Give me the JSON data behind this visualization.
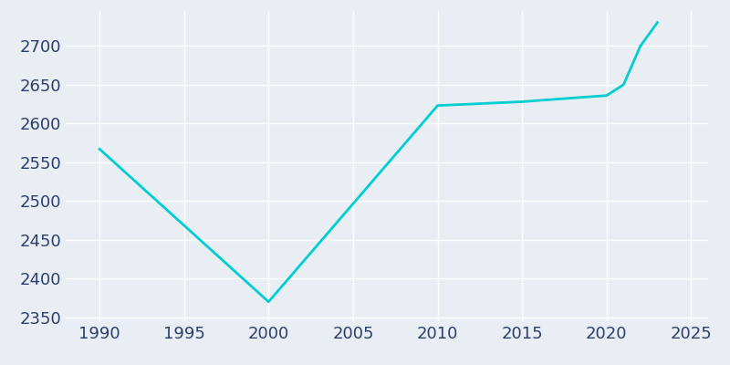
{
  "years": [
    1990,
    2000,
    2010,
    2015,
    2020,
    2021,
    2022,
    2023
  ],
  "population": [
    2567,
    2370,
    2623,
    2628,
    2636,
    2650,
    2700,
    2730
  ],
  "line_color": "#00CED1",
  "line_width": 2.0,
  "background_color": "#E8EEF4",
  "plot_bg_color": "#E8EEF4",
  "xlim": [
    1988,
    2026
  ],
  "ylim": [
    2345,
    2745
  ],
  "xticks": [
    1990,
    1995,
    2000,
    2005,
    2010,
    2015,
    2020,
    2025
  ],
  "yticks": [
    2350,
    2400,
    2450,
    2500,
    2550,
    2600,
    2650,
    2700
  ],
  "tick_color": "#2C3E6B",
  "tick_fontsize": 13,
  "grid_color": "#ffffff",
  "grid_linewidth": 1.0
}
